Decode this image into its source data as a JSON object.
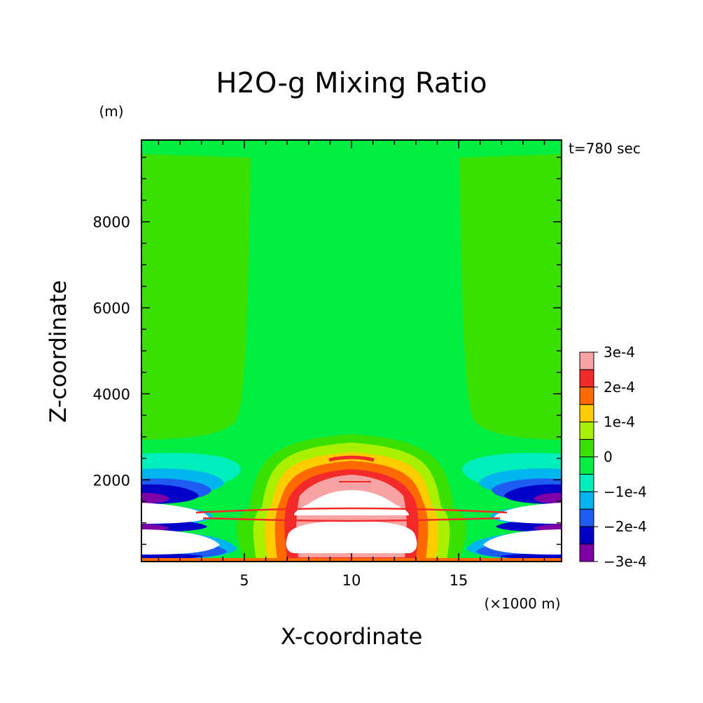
{
  "chart_data": {
    "type": "heatmap",
    "subtype": "filled-contour",
    "title": "H2O-g Mixing Ratio",
    "time_label": "t=780 sec",
    "xlabel": "X-coordinate",
    "ylabel": "Z-coordinate",
    "x_unit": "(×1000 m)",
    "y_unit": "(m)",
    "xlim": [
      0.2,
      19.8
    ],
    "ylim": [
      100,
      9900
    ],
    "x_ticks": [
      5,
      10,
      15
    ],
    "x_tick_labels": [
      "5",
      "10",
      "15"
    ],
    "y_ticks": [
      2000,
      4000,
      6000,
      8000
    ],
    "y_tick_labels": [
      "2000",
      "4000",
      "6000",
      "8000"
    ],
    "legend": {
      "placement": "right",
      "labels": [
        "3e-4",
        "2e-4",
        "1e-4",
        "0",
        "−1e-4",
        "−2e-4",
        "−3e-4"
      ],
      "levels": [
        0.0003,
        0.00025,
        0.0002,
        0.00015,
        0.0001,
        5e-05,
        0,
        -5e-05,
        -0.0001,
        -0.00015,
        -0.0002,
        -0.00025,
        -0.0003
      ],
      "colors": [
        "#f7a3a3",
        "#f42a2a",
        "#ff6a00",
        "#ffcc00",
        "#a8f000",
        "#3ae000",
        "#00ee44",
        "#00eebb",
        "#00b4ee",
        "#1e5cf2",
        "#0000c8",
        "#8000a8"
      ]
    },
    "regions": {
      "background": "#00ee44",
      "side_columns": "#3ae000",
      "saturated_above_max": "#ffffff",
      "saturated_below_min": "#ffffff"
    }
  }
}
